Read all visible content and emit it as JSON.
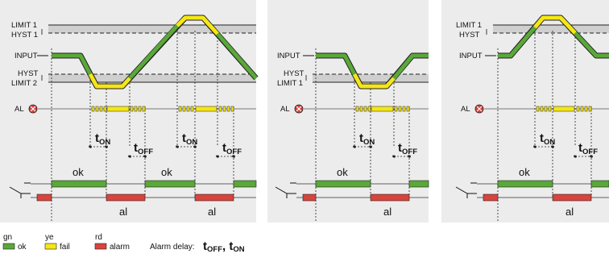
{
  "panels": [
    {
      "limit1": "LIMIT 1",
      "hyst1": "HYST 1",
      "input": "INPUT",
      "hyst2": "HYST",
      "limit2": "LIMIT 2",
      "al": "AL",
      "t_on": "t",
      "t_on_sub": "ON",
      "t_off": "t",
      "t_off_sub": "OFF",
      "t_on2": "t",
      "t_on2_sub": "ON",
      "t_off2": "t",
      "t_off2_sub": "OFF",
      "ok1": "ok",
      "ok2": "ok",
      "al1": "al",
      "al2": "al"
    },
    {
      "input": "INPUT",
      "hyst": "HYST",
      "limit1": "LIMIT 1",
      "al": "AL",
      "t_on": "t",
      "t_on_sub": "ON",
      "t_off": "t",
      "t_off_sub": "OFF",
      "ok1": "ok",
      "al1": "al"
    },
    {
      "limit1": "LIMIT 1",
      "hyst": "HYST",
      "input": "INPUT",
      "al": "AL",
      "t_on": "t",
      "t_on_sub": "ON",
      "t_off": "t",
      "t_off_sub": "OFF",
      "ok1": "ok",
      "al1": "al"
    }
  ],
  "legend": {
    "items": [
      {
        "code": "gn",
        "label": "ok",
        "color": "#5aa839"
      },
      {
        "code": "ye",
        "label": "fail",
        "color": "#f5e616"
      },
      {
        "code": "rd",
        "label": "alarm",
        "color": "#d9443c"
      }
    ],
    "delay_label": "Alarm delay:",
    "t": "t",
    "off_sub": "OFF",
    "on_sub": "ON"
  },
  "colors": {
    "panel_bg": "#ececec",
    "band": "#cfcfcf",
    "green": "#5aa839",
    "yellow": "#f5e616",
    "red": "#d9443c"
  }
}
